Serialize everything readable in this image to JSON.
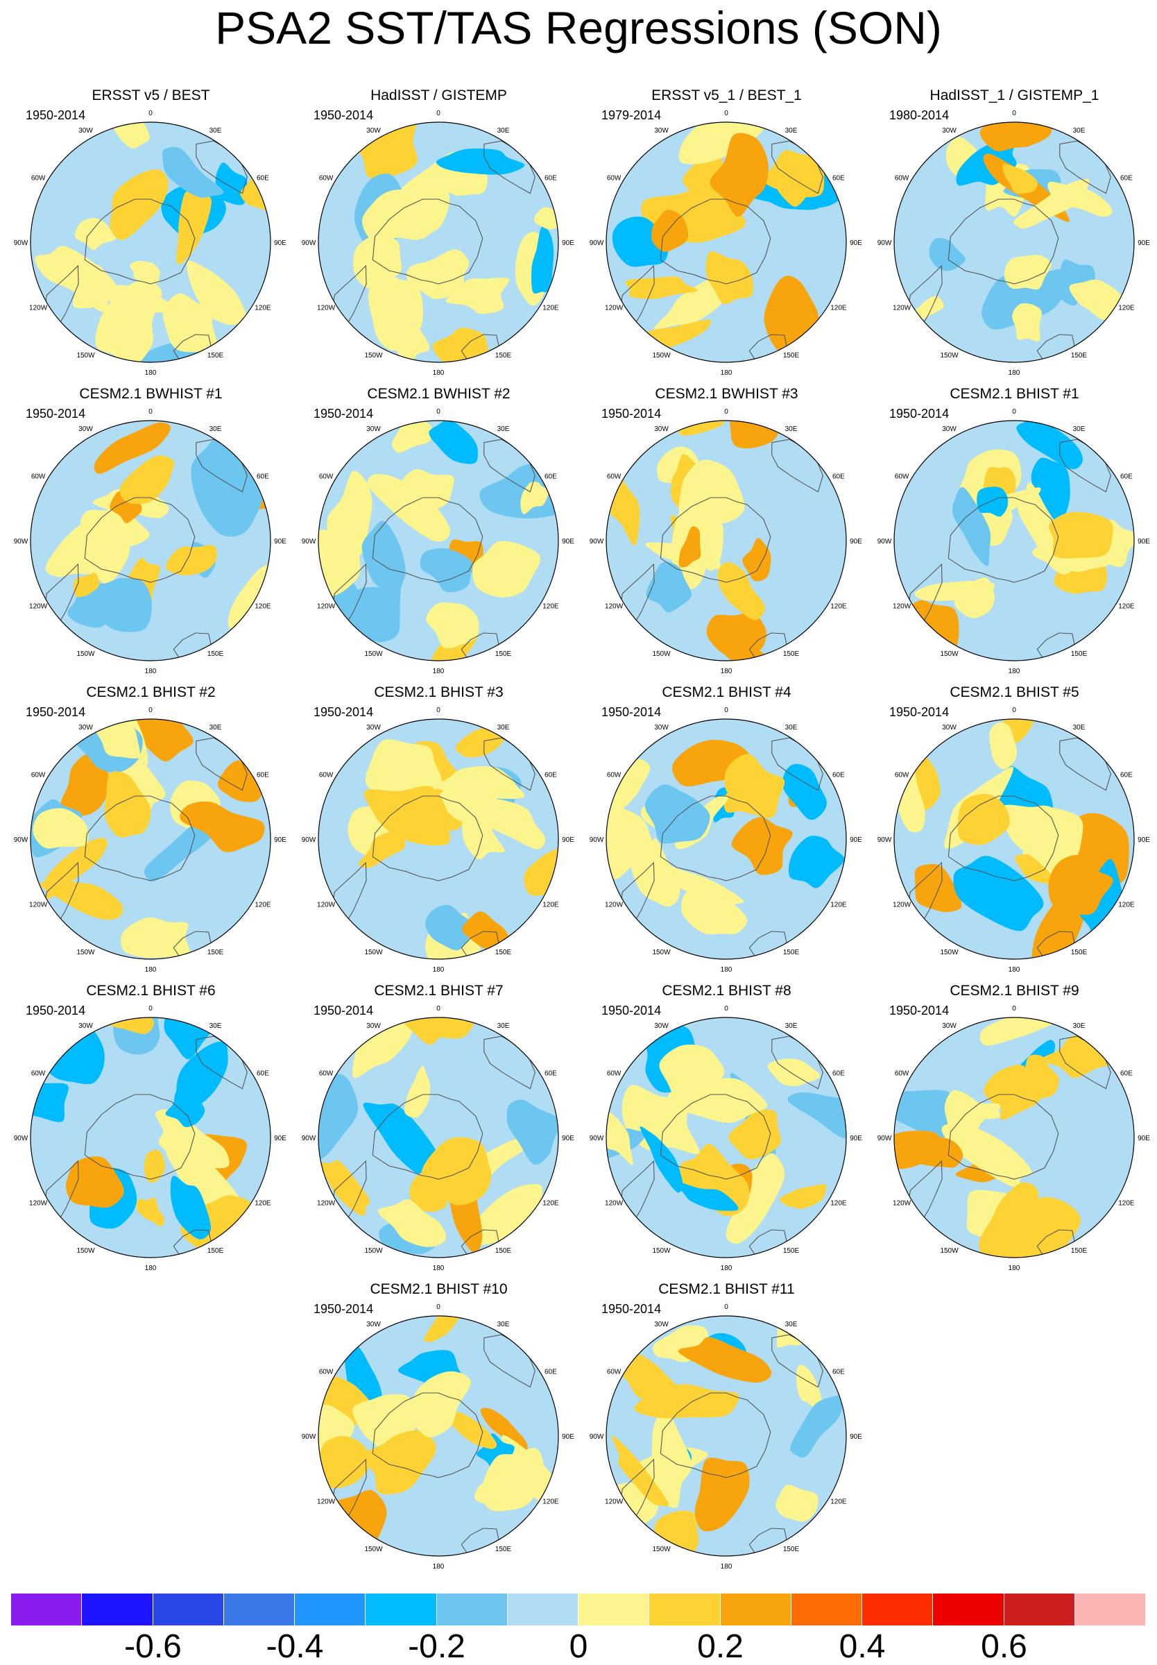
{
  "title": "PSA2 SST/TAS Regressions (SON)",
  "chart_data": [
    {
      "type": "heatmap",
      "title": "ERSST v5 / BEST",
      "period": "1950-2014",
      "projection": "south-polar-stereographic"
    },
    {
      "type": "heatmap",
      "title": "HadISST / GISTEMP",
      "period": "1950-2014",
      "projection": "south-polar-stereographic"
    },
    {
      "type": "heatmap",
      "title": "ERSST v5_1 / BEST_1",
      "period": "1979-2014",
      "projection": "south-polar-stereographic"
    },
    {
      "type": "heatmap",
      "title": "HadISST_1 / GISTEMP_1",
      "period": "1980-2014",
      "projection": "south-polar-stereographic"
    },
    {
      "type": "heatmap",
      "title": "CESM2.1 BWHIST #1",
      "period": "1950-2014",
      "projection": "south-polar-stereographic"
    },
    {
      "type": "heatmap",
      "title": "CESM2.1 BWHIST #2",
      "period": "1950-2014",
      "projection": "south-polar-stereographic"
    },
    {
      "type": "heatmap",
      "title": "CESM2.1 BWHIST #3",
      "period": "1950-2014",
      "projection": "south-polar-stereographic"
    },
    {
      "type": "heatmap",
      "title": "CESM2.1 BHIST #1",
      "period": "1950-2014",
      "projection": "south-polar-stereographic"
    },
    {
      "type": "heatmap",
      "title": "CESM2.1 BHIST #2",
      "period": "1950-2014",
      "projection": "south-polar-stereographic"
    },
    {
      "type": "heatmap",
      "title": "CESM2.1 BHIST #3",
      "period": "1950-2014",
      "projection": "south-polar-stereographic"
    },
    {
      "type": "heatmap",
      "title": "CESM2.1 BHIST #4",
      "period": "1950-2014",
      "projection": "south-polar-stereographic"
    },
    {
      "type": "heatmap",
      "title": "CESM2.1 BHIST #5",
      "period": "1950-2014",
      "projection": "south-polar-stereographic"
    },
    {
      "type": "heatmap",
      "title": "CESM2.1 BHIST #6",
      "period": "1950-2014",
      "projection": "south-polar-stereographic"
    },
    {
      "type": "heatmap",
      "title": "CESM2.1 BHIST #7",
      "period": "1950-2014",
      "projection": "south-polar-stereographic"
    },
    {
      "type": "heatmap",
      "title": "CESM2.1 BHIST #8",
      "period": "1950-2014",
      "projection": "south-polar-stereographic"
    },
    {
      "type": "heatmap",
      "title": "CESM2.1 BHIST #9",
      "period": "1950-2014",
      "projection": "south-polar-stereographic"
    },
    {
      "type": "heatmap",
      "title": "CESM2.1 BHIST #10",
      "period": "1950-2014",
      "projection": "south-polar-stereographic"
    },
    {
      "type": "heatmap",
      "title": "CESM2.1 BHIST #11",
      "period": "1950-2014",
      "projection": "south-polar-stereographic"
    }
  ],
  "longitude_labels": [
    "0",
    "30E",
    "60E",
    "90E",
    "120E",
    "150E",
    "180",
    "150W",
    "120W",
    "90W",
    "60W",
    "30W"
  ],
  "colorbar": {
    "levels": [
      -0.7,
      -0.6,
      -0.5,
      -0.4,
      -0.3,
      -0.2,
      -0.1,
      0,
      0.1,
      0.2,
      0.3,
      0.4,
      0.5,
      0.6,
      0.7
    ],
    "colors": [
      "#8a1cf0",
      "#1e14ff",
      "#2a46e6",
      "#3a78e8",
      "#2196ff",
      "#00bcff",
      "#6cc6f0",
      "#b0dcf4",
      "#fcf48c",
      "#fcd234",
      "#f8a40c",
      "#fc6e04",
      "#fc2e00",
      "#ec0000",
      "#cc1e1e",
      "#fcb4b4"
    ],
    "tick_labels": [
      "-0.6",
      "-0.4",
      "-0.2",
      "0",
      "0.2",
      "0.4",
      "0.6"
    ]
  }
}
